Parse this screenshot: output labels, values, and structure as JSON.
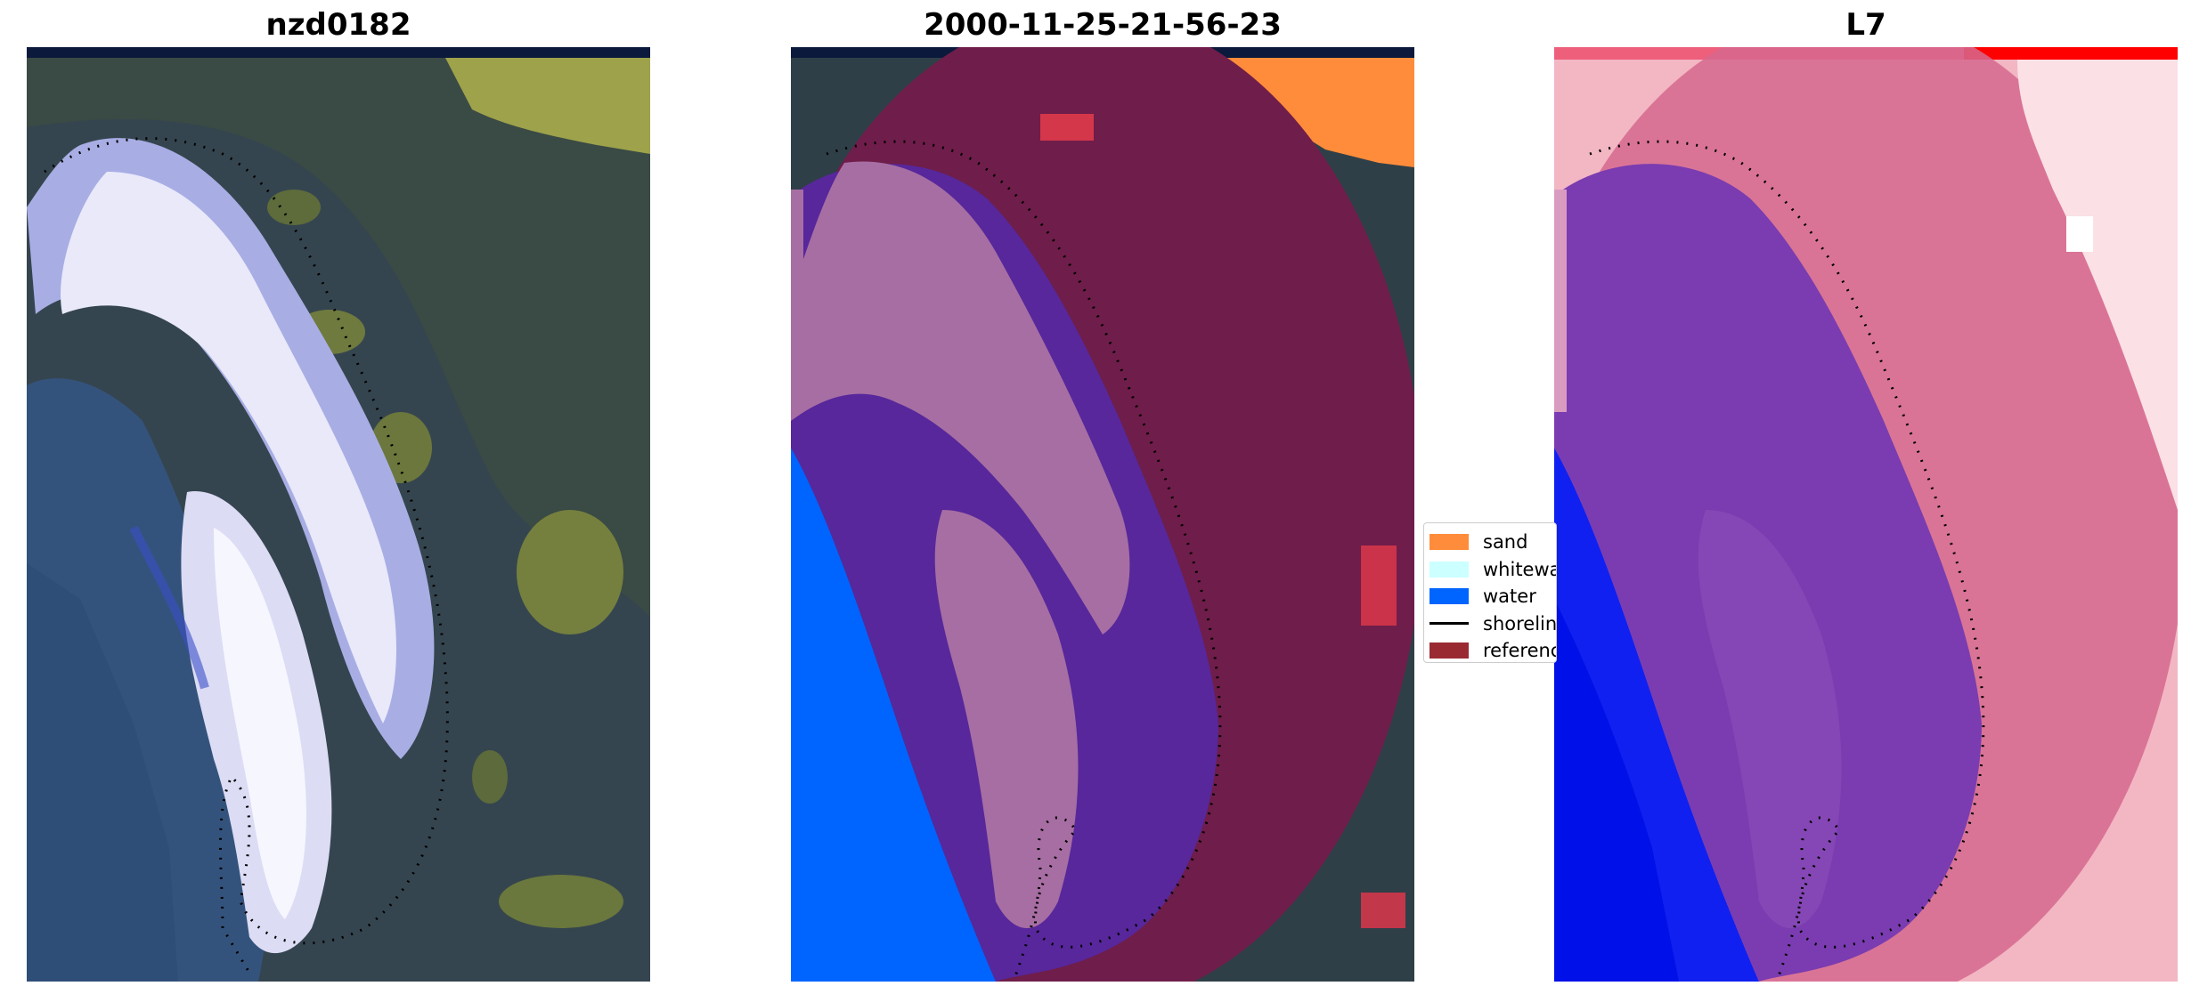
{
  "panels": {
    "left_title": "nzd0182",
    "middle_title": "2000-11-25-21-56-23",
    "right_title": "L7"
  },
  "legend": {
    "items": [
      {
        "label": "sand",
        "color": "#ff8c3a",
        "kind": "patch"
      },
      {
        "label": "whitewater",
        "color": "#ccffff",
        "kind": "patch"
      },
      {
        "label": "water",
        "color": "#0064ff",
        "kind": "patch"
      },
      {
        "label": "shoreline",
        "color": "#000000",
        "kind": "line"
      },
      {
        "label": "reference",
        "color": "#9a2a31",
        "kind": "patch"
      }
    ]
  },
  "colors": {
    "land_dark": "#35454f",
    "vegetation": "#8f9a3a",
    "whitewater_rgb": "#e6e6f8",
    "ocean_rgb": "#34537c",
    "class_sand": "#ff8c3a",
    "class_water": "#0064ff",
    "class_white": "#a76ea3",
    "class_purple": "#57279b",
    "class_reference": "#6f1d4a",
    "mndwi_red": "#d6395c",
    "mndwi_pink": "#f2b7c3",
    "mndwi_blue": "#1020f0",
    "mndwi_purple": "#7a3cb0"
  }
}
